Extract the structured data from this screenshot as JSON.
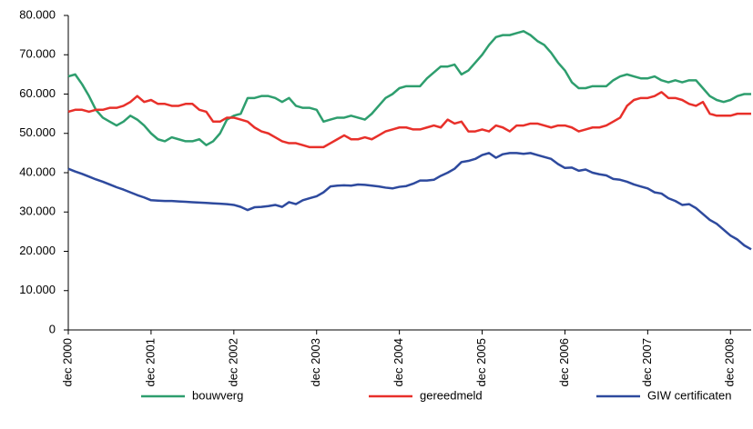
{
  "chart_data": {
    "type": "line",
    "categories": [
      "dec 2000",
      null,
      null,
      null,
      null,
      null,
      null,
      null,
      null,
      null,
      null,
      null,
      "dec 2001",
      null,
      null,
      null,
      null,
      null,
      null,
      null,
      null,
      null,
      null,
      null,
      "dec 2002",
      null,
      null,
      null,
      null,
      null,
      null,
      null,
      null,
      null,
      null,
      null,
      "dec 2003",
      null,
      null,
      null,
      null,
      null,
      null,
      null,
      null,
      null,
      null,
      null,
      "dec 2004",
      null,
      null,
      null,
      null,
      null,
      null,
      null,
      null,
      null,
      null,
      null,
      "dec 2005",
      null,
      null,
      null,
      null,
      null,
      null,
      null,
      null,
      null,
      null,
      null,
      "dec 2006",
      null,
      null,
      null,
      null,
      null,
      null,
      null,
      null,
      null,
      null,
      null,
      "dec 2007",
      null,
      null,
      null,
      null,
      null,
      null,
      null,
      null,
      null,
      null,
      null,
      "dec 2008",
      null,
      null,
      null
    ],
    "series": [
      {
        "name": "bouwverg",
        "color": "#2e9e6e",
        "values": [
          64500,
          65000,
          62500,
          59500,
          56000,
          54000,
          53000,
          52000,
          53000,
          54500,
          53500,
          52000,
          50000,
          48500,
          48000,
          49000,
          48500,
          48000,
          48000,
          48500,
          47000,
          48000,
          50000,
          53500,
          54500,
          55000,
          59000,
          59000,
          59500,
          59500,
          59000,
          58000,
          59000,
          57000,
          56500,
          56500,
          56000,
          53000,
          53500,
          54000,
          54000,
          54500,
          54000,
          53500,
          55000,
          57000,
          59000,
          60000,
          61500,
          62000,
          62000,
          62000,
          64000,
          65500,
          67000,
          67000,
          67500,
          65000,
          66000,
          68000,
          70000,
          72500,
          74500,
          75000,
          75000,
          75500,
          76000,
          75000,
          73500,
          72500,
          70500,
          68000,
          66000,
          63000,
          61500,
          61500,
          62000,
          62000,
          62000,
          63500,
          64500,
          65000,
          64500,
          64000,
          64000,
          64500,
          63500,
          63000,
          63500,
          63000,
          63500,
          63500,
          61500,
          59500,
          58500,
          58000,
          58500,
          59500,
          60000,
          60000
        ]
      },
      {
        "name": "gereedmeld",
        "color": "#e8302a",
        "values": [
          55500,
          56000,
          56000,
          55500,
          56000,
          56000,
          56500,
          56500,
          57000,
          58000,
          59500,
          58000,
          58500,
          57500,
          57500,
          57000,
          57000,
          57500,
          57500,
          56000,
          55500,
          53000,
          53000,
          54000,
          54000,
          53500,
          53000,
          51500,
          50500,
          50000,
          49000,
          48000,
          47500,
          47500,
          47000,
          46500,
          46500,
          46500,
          47500,
          48500,
          49500,
          48500,
          48500,
          49000,
          48500,
          49500,
          50500,
          51000,
          51500,
          51500,
          51000,
          51000,
          51500,
          52000,
          51500,
          53500,
          52500,
          53000,
          50500,
          50500,
          51000,
          50500,
          52000,
          51500,
          50500,
          52000,
          52000,
          52500,
          52500,
          52000,
          51500,
          52000,
          52000,
          51500,
          50500,
          51000,
          51500,
          51500,
          52000,
          53000,
          54000,
          57000,
          58500,
          59000,
          59000,
          59500,
          60500,
          59000,
          59000,
          58500,
          57500,
          57000,
          58000,
          55000,
          54500,
          54500,
          54500,
          55000,
          55000,
          55000
        ]
      },
      {
        "name": "GIW certificaten",
        "color": "#2e4a9e",
        "values": [
          41000,
          40300,
          39700,
          39000,
          38300,
          37700,
          37000,
          36300,
          35700,
          35000,
          34300,
          33700,
          33000,
          32900,
          32800,
          32800,
          32700,
          32600,
          32500,
          32400,
          32300,
          32200,
          32100,
          32000,
          31800,
          31300,
          30500,
          31200,
          31300,
          31500,
          31800,
          31300,
          32500,
          32000,
          33000,
          33500,
          34000,
          35000,
          36500,
          36700,
          36800,
          36700,
          37000,
          36900,
          36700,
          36500,
          36200,
          36000,
          36400,
          36600,
          37200,
          38000,
          38000,
          38200,
          39200,
          40000,
          41000,
          42700,
          43000,
          43500,
          44500,
          45000,
          43800,
          44700,
          45000,
          45000,
          44800,
          45000,
          44500,
          44000,
          43500,
          42200,
          41200,
          41300,
          40500,
          40800,
          40000,
          39600,
          39300,
          38400,
          38200,
          37700,
          37000,
          36500,
          36000,
          35000,
          34700,
          33500,
          32800,
          31800,
          32000,
          31000,
          29500,
          28000,
          27000,
          25500,
          24000,
          23000,
          21500,
          20500
        ]
      }
    ],
    "ylim": [
      0,
      80000
    ],
    "yticks": [
      0,
      {
        "value": 10000,
        "label": "10.000"
      },
      {
        "value": 20000,
        "label": "20.000"
      },
      {
        "value": 30000,
        "label": "30.000"
      },
      {
        "value": 40000,
        "label": "40.000"
      },
      {
        "value": 50000,
        "label": "50.000"
      },
      {
        "value": 60000,
        "label": "60.000"
      },
      {
        "value": 70000,
        "label": "70.000"
      },
      {
        "value": 80000,
        "label": "80.000"
      }
    ],
    "grid": false,
    "legend": "bottom"
  }
}
